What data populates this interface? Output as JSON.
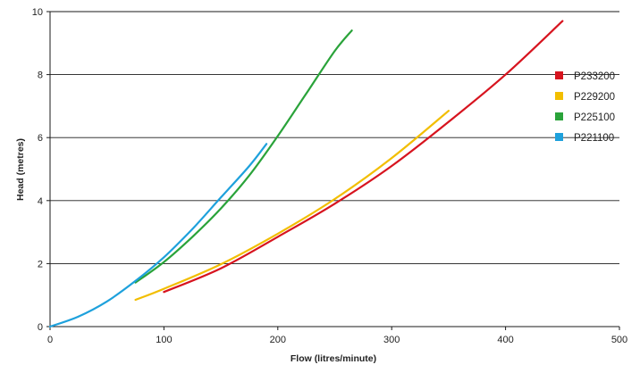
{
  "chart_data": {
    "type": "line",
    "title": "",
    "xlabel": "Flow (litres/minute)",
    "ylabel": "Head (metres)",
    "xlim": [
      0,
      500
    ],
    "ylim": [
      0,
      10
    ],
    "xticks": [
      0,
      100,
      200,
      300,
      400,
      500
    ],
    "yticks": [
      0,
      2,
      4,
      6,
      8,
      10
    ],
    "grid": "horizontal",
    "legend_position": "right",
    "series": [
      {
        "name": "P233200",
        "color": "#d7141f",
        "x": [
          100,
          150,
          200,
          250,
          300,
          350,
          400,
          450
        ],
        "y": [
          1.1,
          1.85,
          2.85,
          3.9,
          5.1,
          6.5,
          8.0,
          9.7
        ]
      },
      {
        "name": "P229200",
        "color": "#f2be00",
        "x": [
          75,
          100,
          150,
          200,
          250,
          300,
          350
        ],
        "y": [
          0.85,
          1.2,
          1.98,
          2.95,
          4.05,
          5.35,
          6.85
        ]
      },
      {
        "name": "P225100",
        "color": "#2aa33a",
        "x": [
          75,
          100,
          125,
          150,
          175,
          200,
          225,
          250,
          265
        ],
        "y": [
          1.4,
          2.05,
          2.85,
          3.75,
          4.8,
          6.05,
          7.4,
          8.75,
          9.4
        ]
      },
      {
        "name": "P221100",
        "color": "#1ea1dc",
        "x": [
          0,
          25,
          50,
          75,
          100,
          125,
          150,
          175,
          190
        ],
        "y": [
          0,
          0.32,
          0.8,
          1.45,
          2.2,
          3.1,
          4.1,
          5.1,
          5.8
        ]
      }
    ]
  }
}
